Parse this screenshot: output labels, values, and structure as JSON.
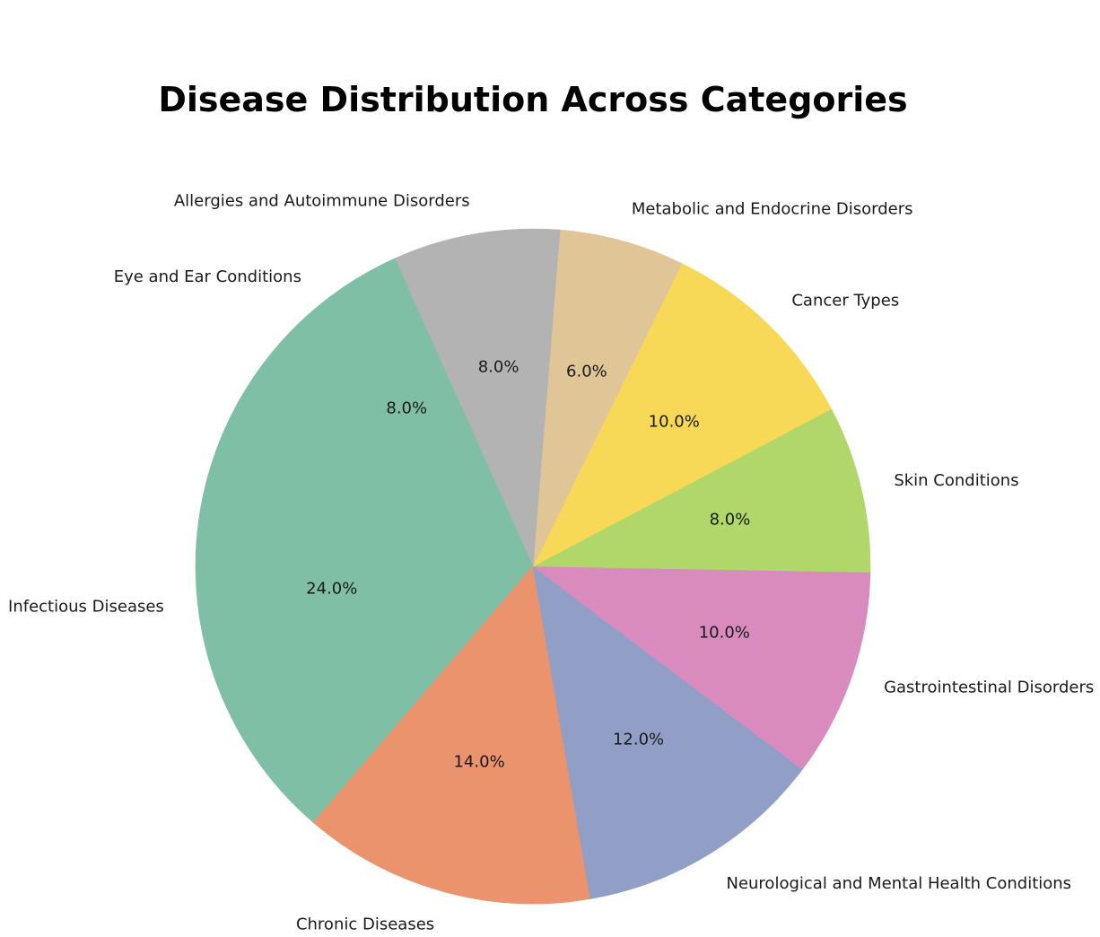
{
  "chart_data": {
    "type": "pie",
    "title": "Disease Distribution Across Categories",
    "start_angle_deg": 143,
    "direction": "counterclockwise",
    "slices": [
      {
        "label": "Infectious Diseases",
        "value": 24.0,
        "pct_label": "24.0%",
        "color": "#7fbfa6"
      },
      {
        "label": "Chronic Diseases",
        "value": 14.0,
        "pct_label": "14.0%",
        "color": "#eb936c"
      },
      {
        "label": "Neurological and Mental Health Conditions",
        "value": 12.0,
        "pct_label": "12.0%",
        "color": "#919fc7"
      },
      {
        "label": "Gastrointestinal Disorders",
        "value": 10.0,
        "pct_label": "10.0%",
        "color": "#d88bbc"
      },
      {
        "label": "Skin Conditions",
        "value": 8.0,
        "pct_label": "8.0%",
        "color": "#b1d66a"
      },
      {
        "label": "Cancer Types",
        "value": 10.0,
        "pct_label": "10.0%",
        "color": "#f7d957"
      },
      {
        "label": "Metabolic and Endocrine Disorders",
        "value": 6.0,
        "pct_label": "6.0%",
        "color": "#e0c597"
      },
      {
        "label": "Allergies and Autoimmune Disorders",
        "value": 8.0,
        "pct_label": "8.0%",
        "color": "#b3b3b3"
      },
      {
        "label": "Eye and Ear Conditions",
        "value": 8.0,
        "pct_label": "8.0%",
        "color": "#7fbfa6"
      }
    ]
  }
}
